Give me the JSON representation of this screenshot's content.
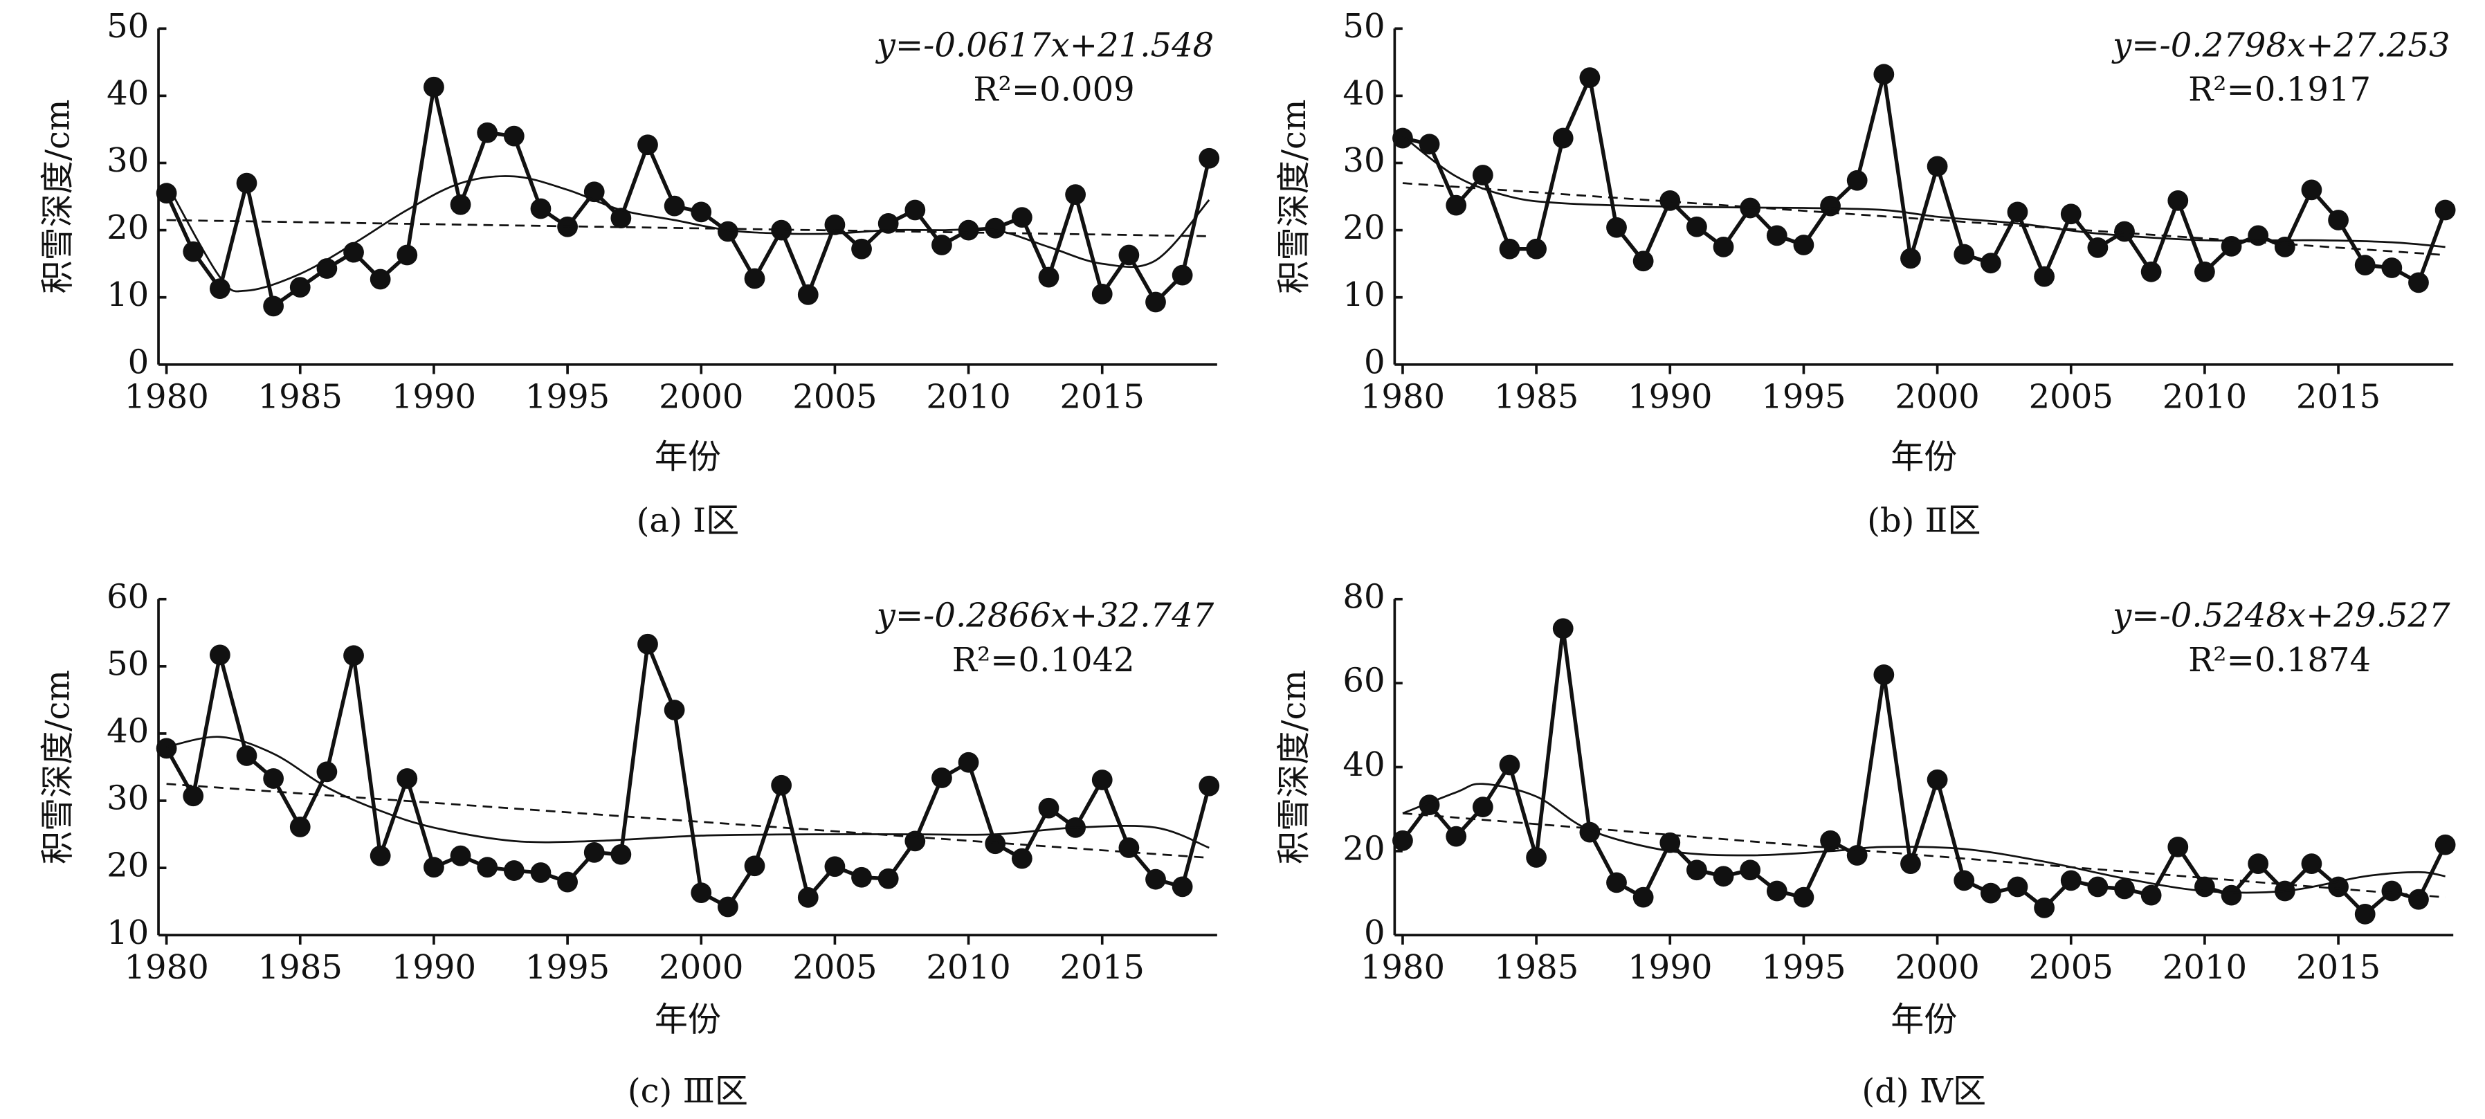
{
  "chart_data": [
    {
      "type": "line",
      "equation": "y=-0.0617x+21.548",
      "r2": "R²=0.009",
      "xlabel": "年份",
      "ylabel": "积雪深度/cm",
      "caption": "(a) Ⅰ区",
      "xlim": [
        1979.7,
        2019.3
      ],
      "ylim": [
        0,
        50
      ],
      "xticks": [
        1980,
        1985,
        1990,
        1995,
        2000,
        2005,
        2010,
        2015
      ],
      "yticks": [
        0,
        10,
        20,
        30,
        40,
        50
      ],
      "x": [
        1980,
        1981,
        1982,
        1983,
        1984,
        1985,
        1986,
        1987,
        1988,
        1989,
        1990,
        1991,
        1992,
        1993,
        1994,
        1995,
        1996,
        1997,
        1998,
        1999,
        2000,
        2001,
        2002,
        2003,
        2004,
        2005,
        2006,
        2007,
        2008,
        2009,
        2010,
        2011,
        2012,
        2013,
        2014,
        2015,
        2016,
        2017,
        2018,
        2019
      ],
      "series": [
        {
          "color": "#111111",
          "style": "markers",
          "values": [
            25.5,
            16.8,
            11.3,
            27,
            8.7,
            11.5,
            14.3,
            16.7,
            12.7,
            16.3,
            41.3,
            23.8,
            34.5,
            34,
            23.2,
            20.5,
            25.7,
            21.8,
            32.7,
            23.6,
            22.7,
            19.8,
            12.8,
            20,
            10.4,
            20.8,
            17.2,
            21,
            23,
            17.8,
            20,
            20.3,
            21.9,
            13,
            25.3,
            10.5,
            16.3,
            9.3,
            13.3,
            30.7
          ]
        },
        {
          "color": "#111111",
          "style": "smooth",
          "x": [
            1980,
            1982,
            1983,
            1985,
            1987,
            1989,
            1991,
            1993,
            1995,
            1997,
            1999,
            2001,
            2003,
            2005,
            2007,
            2009,
            2011,
            2013,
            2015,
            2017,
            2019
          ],
          "values": [
            27,
            13,
            11,
            13.5,
            18,
            23,
            27,
            28,
            26,
            23,
            21.5,
            20,
            19.5,
            19.5,
            20,
            20,
            20,
            17.5,
            15,
            15.5,
            24.5
          ]
        },
        {
          "color": "#111111",
          "style": "dashed",
          "x": [
            1980,
            2019
          ],
          "values": [
            21.5,
            19.1
          ]
        }
      ]
    },
    {
      "type": "line",
      "equation": "y=-0.2798x+27.253",
      "r2": "R²=0.1917",
      "xlabel": "年份",
      "ylabel": "积雪深度/cm",
      "caption": "(b) Ⅱ区",
      "xlim": [
        1979.7,
        2019.3
      ],
      "ylim": [
        0,
        50
      ],
      "xticks": [
        1980,
        1985,
        1990,
        1995,
        2000,
        2005,
        2010,
        2015
      ],
      "yticks": [
        0,
        10,
        20,
        30,
        40,
        50
      ],
      "x": [
        1980,
        1981,
        1982,
        1983,
        1984,
        1985,
        1986,
        1987,
        1988,
        1989,
        1990,
        1991,
        1992,
        1993,
        1994,
        1995,
        1996,
        1997,
        1998,
        1999,
        2000,
        2001,
        2002,
        2003,
        2004,
        2005,
        2006,
        2007,
        2008,
        2009,
        2010,
        2011,
        2012,
        2013,
        2014,
        2015,
        2016,
        2017,
        2018,
        2019
      ],
      "series": [
        {
          "color": "#111111",
          "style": "markers",
          "values": [
            33.7,
            32.8,
            23.7,
            28.2,
            17.2,
            17.2,
            33.7,
            42.7,
            20.4,
            15.4,
            24.4,
            20.5,
            17.5,
            23.3,
            19.2,
            17.8,
            23.6,
            27.4,
            43.2,
            15.8,
            29.5,
            16.4,
            15.1,
            22.7,
            13.1,
            22.4,
            17.4,
            19.8,
            13.8,
            24.4,
            13.8,
            17.6,
            19.2,
            17.5,
            26,
            21.5,
            14.8,
            14.4,
            12.2,
            23
          ]
        },
        {
          "color": "#111111",
          "style": "smooth",
          "x": [
            1980,
            1982,
            1984,
            1986,
            1990,
            1995,
            1998,
            2000,
            2003,
            2006,
            2010,
            2014,
            2017,
            2019
          ],
          "values": [
            34,
            28,
            25,
            24,
            23.5,
            23.3,
            23,
            22,
            21,
            19.5,
            18.5,
            18.5,
            18.2,
            17.5
          ]
        },
        {
          "color": "#111111",
          "style": "dashed",
          "x": [
            1980,
            2019
          ],
          "values": [
            27.0,
            16.3
          ]
        }
      ]
    },
    {
      "type": "line",
      "equation": "y=-0.2866x+32.747",
      "r2": "R²=0.1042",
      "xlabel": "年份",
      "ylabel": "积雪深度/cm",
      "caption": "(c) Ⅲ区",
      "xlim": [
        1979.7,
        2019.3
      ],
      "ylim": [
        10,
        60
      ],
      "xticks": [
        1980,
        1985,
        1990,
        1995,
        2000,
        2005,
        2010,
        2015
      ],
      "yticks": [
        10,
        20,
        30,
        40,
        50,
        60
      ],
      "x": [
        1980,
        1981,
        1982,
        1983,
        1984,
        1985,
        1986,
        1987,
        1988,
        1989,
        1990,
        1991,
        1992,
        1993,
        1994,
        1995,
        1996,
        1997,
        1998,
        1999,
        2000,
        2001,
        2002,
        2003,
        2004,
        2005,
        2006,
        2007,
        2008,
        2009,
        2010,
        2011,
        2012,
        2013,
        2014,
        2015,
        2016,
        2017,
        2018,
        2019
      ],
      "series": [
        {
          "color": "#111111",
          "style": "markers",
          "values": [
            37.8,
            30.7,
            51.7,
            36.7,
            33.3,
            26.1,
            34.3,
            51.6,
            21.8,
            33.3,
            20.1,
            21.8,
            20.1,
            19.6,
            19.3,
            17.9,
            22.3,
            22,
            53.3,
            43.5,
            16.3,
            14.2,
            20.3,
            32.3,
            15.6,
            20.2,
            18.6,
            18.4,
            24,
            33.4,
            35.7,
            23.6,
            21.4,
            28.9,
            26,
            33.1,
            23,
            18.3,
            17.2,
            32.2
          ]
        },
        {
          "color": "#111111",
          "style": "smooth",
          "x": [
            1980,
            1982,
            1984,
            1986,
            1988,
            1990,
            1993,
            1996,
            2000,
            2004,
            2008,
            2011,
            2014,
            2017,
            2019
          ],
          "values": [
            38,
            39.5,
            37,
            32,
            28.5,
            26,
            24,
            24,
            24.8,
            25,
            25,
            25,
            26,
            26,
            23
          ]
        },
        {
          "color": "#111111",
          "style": "dashed",
          "x": [
            1980,
            2019
          ],
          "values": [
            32.5,
            21.5
          ]
        }
      ]
    },
    {
      "type": "line",
      "equation": "y=-0.5248x+29.527",
      "r2": "R²=0.1874",
      "xlabel": "年份",
      "ylabel": "积雪深度/cm",
      "caption": "(d) Ⅳ区",
      "xlim": [
        1979.7,
        2019.3
      ],
      "ylim": [
        0,
        80
      ],
      "xticks": [
        1980,
        1985,
        1990,
        1995,
        2000,
        2005,
        2010,
        2015
      ],
      "yticks": [
        0,
        20,
        40,
        60,
        80
      ],
      "x": [
        1980,
        1981,
        1982,
        1983,
        1984,
        1985,
        1986,
        1987,
        1988,
        1989,
        1990,
        1991,
        1992,
        1993,
        1994,
        1995,
        1996,
        1997,
        1998,
        1999,
        2000,
        2001,
        2002,
        2003,
        2004,
        2005,
        2006,
        2007,
        2008,
        2009,
        2010,
        2011,
        2012,
        2013,
        2014,
        2015,
        2016,
        2017,
        2018,
        2019
      ],
      "series": [
        {
          "color": "#111111",
          "style": "markers",
          "values": [
            22.5,
            31,
            23.5,
            30.5,
            40.5,
            18.5,
            73,
            24.5,
            12.5,
            9,
            22,
            15.5,
            14,
            15.5,
            10.5,
            9,
            22.5,
            19,
            62,
            17,
            37,
            13,
            10,
            11.5,
            6.5,
            13,
            11.5,
            11,
            9.5,
            21,
            11.5,
            9.5,
            17,
            10.5,
            17,
            11.5,
            5,
            10.5,
            8.5,
            21.5
          ]
        },
        {
          "color": "#111111",
          "style": "smooth",
          "x": [
            1980,
            1982,
            1983,
            1985,
            1987,
            1990,
            1993,
            1996,
            1998,
            2001,
            2004,
            2007,
            2010,
            2013,
            2016,
            2018,
            2019
          ],
          "values": [
            29,
            34,
            36,
            33,
            25,
            20,
            19,
            20,
            21,
            20.5,
            17.5,
            13.5,
            10.5,
            10.5,
            14,
            15,
            14
          ]
        },
        {
          "color": "#111111",
          "style": "dashed",
          "x": [
            1980,
            2019
          ],
          "values": [
            29,
            9
          ]
        }
      ]
    }
  ]
}
